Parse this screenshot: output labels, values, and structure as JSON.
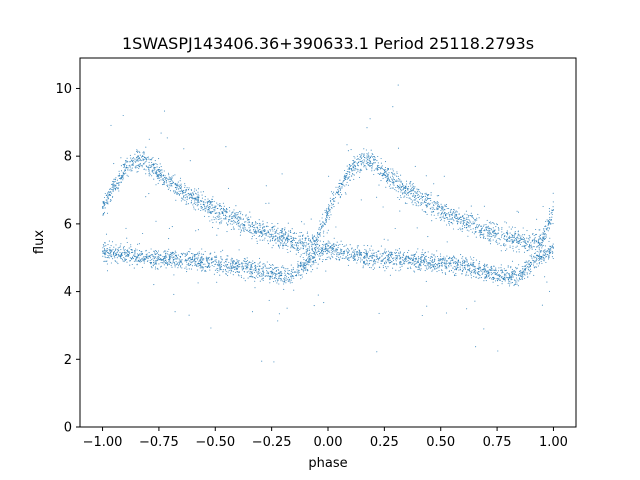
{
  "chart_data": {
    "type": "scatter",
    "title": "1SWASPJ143406.36+390633.1 Period 25118.2793s",
    "xlabel": "phase",
    "ylabel": "flux",
    "xlim": [
      -1.1,
      1.1
    ],
    "ylim": [
      0,
      10.9
    ],
    "x_ticks": [
      -1.0,
      -0.75,
      -0.5,
      -0.25,
      0.0,
      0.25,
      0.5,
      0.75,
      1.0
    ],
    "x_tick_labels": [
      "−1.00",
      "−0.75",
      "−0.50",
      "−0.25",
      "0.00",
      "0.25",
      "0.50",
      "0.75",
      "1.00"
    ],
    "y_ticks": [
      0,
      2,
      4,
      6,
      8,
      10
    ],
    "y_tick_labels": [
      "0",
      "2",
      "4",
      "6",
      "8",
      "10"
    ],
    "grid": false,
    "marker_color": "#1f77b4",
    "series": [
      {
        "values_description_free": true,
        "upper_branch": {
          "x": [
            -1.0,
            -0.95,
            -0.9,
            -0.85,
            -0.8,
            -0.75,
            -0.7,
            -0.6,
            -0.5,
            -0.4,
            -0.3,
            -0.2,
            -0.1,
            -0.05,
            0.0,
            0.05,
            0.1,
            0.15,
            0.2,
            0.25,
            0.3,
            0.4,
            0.5,
            0.6,
            0.7,
            0.8,
            0.9,
            0.95,
            1.0
          ],
          "y": [
            6.5,
            7.1,
            7.6,
            7.9,
            7.8,
            7.5,
            7.2,
            6.8,
            6.4,
            6.1,
            5.8,
            5.6,
            5.4,
            5.5,
            6.3,
            7.0,
            7.6,
            7.9,
            7.8,
            7.5,
            7.2,
            6.8,
            6.4,
            6.1,
            5.8,
            5.6,
            5.4,
            5.5,
            6.4
          ]
        },
        "lower_branch": {
          "x": [
            -1.0,
            -0.9,
            -0.8,
            -0.7,
            -0.6,
            -0.5,
            -0.4,
            -0.3,
            -0.2,
            -0.15,
            -0.1,
            -0.05,
            0.0,
            0.1,
            0.2,
            0.3,
            0.4,
            0.5,
            0.6,
            0.7,
            0.8,
            0.85,
            0.9,
            0.95,
            1.0
          ],
          "y": [
            5.2,
            5.1,
            5.0,
            4.95,
            4.9,
            4.85,
            4.75,
            4.6,
            4.45,
            4.5,
            4.8,
            5.1,
            5.3,
            5.1,
            5.0,
            4.95,
            4.9,
            4.85,
            4.75,
            4.6,
            4.45,
            4.5,
            4.8,
            5.1,
            5.3
          ]
        }
      }
    ]
  }
}
